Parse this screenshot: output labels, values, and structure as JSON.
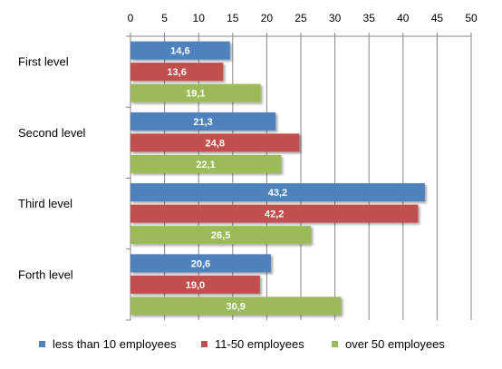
{
  "chart_data": {
    "type": "bar",
    "orientation": "horizontal",
    "categories": [
      "First level",
      "Second level",
      "Third level",
      "Forth level"
    ],
    "series": [
      {
        "name": "less than 10 employees",
        "color": "#4f81bd",
        "values": [
          14.6,
          21.3,
          43.2,
          20.6
        ],
        "labels": [
          "14,6",
          "21,3",
          "43,2",
          "20,6"
        ]
      },
      {
        "name": "11-50 employees",
        "color": "#c0504d",
        "values": [
          13.6,
          24.8,
          42.2,
          19.0
        ],
        "labels": [
          "13,6",
          "24,8",
          "42,2",
          "19,0"
        ]
      },
      {
        "name": "over 50 employees",
        "color": "#9bbb59",
        "values": [
          19.1,
          22.1,
          26.5,
          30.9
        ],
        "labels": [
          "19,1",
          "22,1",
          "26,5",
          "30,9"
        ]
      }
    ],
    "xticks": [
      "0",
      "5",
      "10",
      "15",
      "20",
      "25",
      "30",
      "35",
      "40",
      "45",
      "50"
    ],
    "xlim": [
      0,
      50
    ],
    "axis_position": "top",
    "grid": true,
    "legend_position": "bottom"
  }
}
